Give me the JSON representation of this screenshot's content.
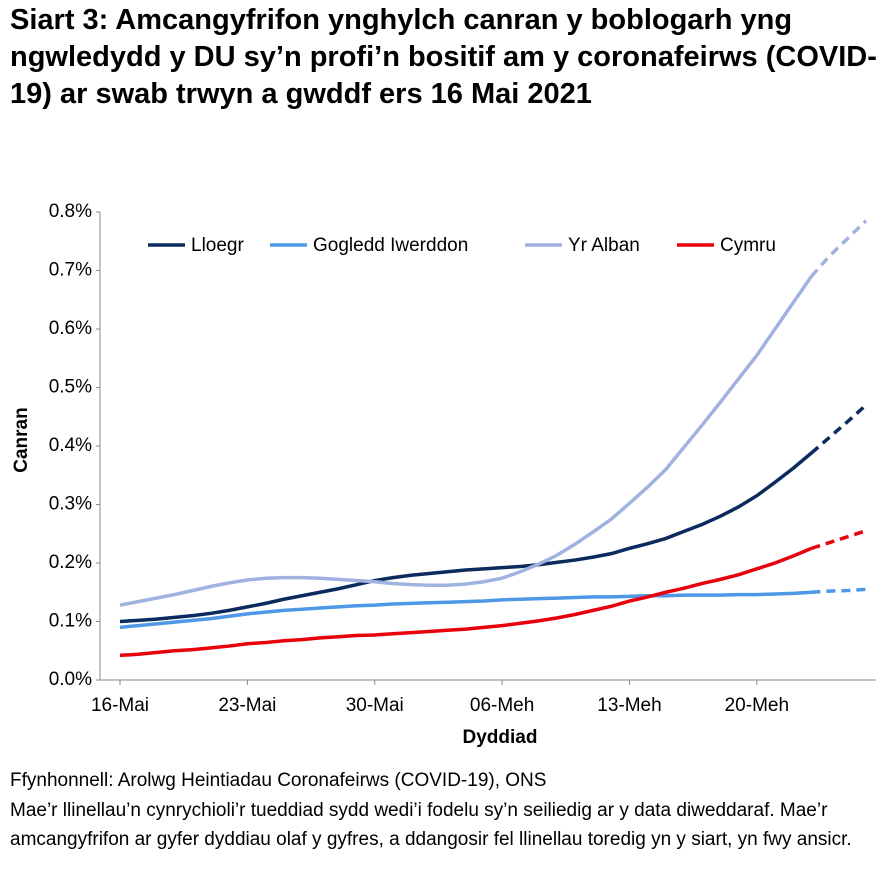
{
  "chart_data": {
    "type": "line",
    "title": "Siart 3: Amcangyfrifon ynghylch canran y boblogarh yng ngwledydd y DU sy’n profi’n bositif am y coronafeirws (COVID-19) ar swab trwyn a gwddf ers 16 Mai 2021",
    "y_label": "Canran",
    "x_label": "Dyddiad",
    "source": "Ffynhonnell: Arolwg Heintiadau Coronafeirws (COVID-19), ONS",
    "note": "Mae’r llinellau’n cynrychioli’r tueddiad sydd wedi’i fodelu sy’n seiliedig ar y data diweddaraf. Mae’r amcangyfrifon ar gyfer dyddiau olaf y gyfres, a ddangosir fel llinellau toredig yn y siart, yn fwy ansicr.",
    "categories": [
      "16-Mai",
      null,
      null,
      null,
      null,
      null,
      null,
      "23-Mai",
      null,
      null,
      null,
      null,
      null,
      null,
      "30-Mai",
      null,
      null,
      null,
      null,
      null,
      null,
      "06-Meh",
      null,
      null,
      null,
      null,
      null,
      null,
      "13-Meh",
      null,
      null,
      null,
      null,
      null,
      null,
      "20-Meh",
      null,
      null,
      null,
      null,
      null,
      null
    ],
    "ylim": [
      0,
      0.8
    ],
    "yticks": [
      {
        "value": 0,
        "label": "0.0%"
      },
      {
        "value": 0.1,
        "label": "0.1%"
      },
      {
        "value": 0.2,
        "label": "0.2%"
      },
      {
        "value": 0.3,
        "label": "0.3%"
      },
      {
        "value": 0.4,
        "label": "0.4%"
      },
      {
        "value": 0.5,
        "label": "0.5%"
      },
      {
        "value": 0.6,
        "label": "0.6%"
      },
      {
        "value": 0.7,
        "label": "0.7%"
      },
      {
        "value": 0.8,
        "label": "0.8%"
      }
    ],
    "legend": "top",
    "dash_start": 38,
    "series": [
      {
        "name": "Lloegr",
        "color": "#0b2a5e",
        "values": [
          0.1,
          0.102,
          0.104,
          0.107,
          0.11,
          0.114,
          0.119,
          0.125,
          0.131,
          0.138,
          0.144,
          0.15,
          0.156,
          0.163,
          0.17,
          0.175,
          0.179,
          0.182,
          0.185,
          0.188,
          0.19,
          0.192,
          0.194,
          0.197,
          0.201,
          0.205,
          0.21,
          0.216,
          0.225,
          0.233,
          0.242,
          0.254,
          0.266,
          0.28,
          0.296,
          0.315,
          0.338,
          0.362,
          0.388,
          0.415,
          0.442,
          0.47
        ]
      },
      {
        "name": "Gogledd Iwerddon",
        "color": "#4f98e6",
        "values": [
          0.09,
          0.093,
          0.096,
          0.099,
          0.102,
          0.105,
          0.109,
          0.113,
          0.116,
          0.119,
          0.121,
          0.123,
          0.125,
          0.127,
          0.128,
          0.13,
          0.131,
          0.132,
          0.133,
          0.134,
          0.135,
          0.137,
          0.138,
          0.139,
          0.14,
          0.141,
          0.142,
          0.142,
          0.143,
          0.144,
          0.144,
          0.145,
          0.145,
          0.145,
          0.146,
          0.146,
          0.147,
          0.148,
          0.15,
          0.152,
          0.153,
          0.155
        ]
      },
      {
        "name": "Yr Alban",
        "color": "#a0b3e0",
        "values": [
          0.128,
          0.134,
          0.14,
          0.146,
          0.153,
          0.16,
          0.166,
          0.171,
          0.174,
          0.175,
          0.175,
          0.174,
          0.172,
          0.17,
          0.168,
          0.165,
          0.163,
          0.162,
          0.162,
          0.164,
          0.168,
          0.174,
          0.185,
          0.198,
          0.213,
          0.232,
          0.253,
          0.275,
          0.302,
          0.33,
          0.36,
          0.398,
          0.436,
          0.475,
          0.515,
          0.555,
          0.6,
          0.645,
          0.69,
          0.725,
          0.755,
          0.785
        ]
      },
      {
        "name": "Cymru",
        "color": "#e8000b",
        "values": [
          0.042,
          0.044,
          0.047,
          0.05,
          0.052,
          0.055,
          0.058,
          0.062,
          0.064,
          0.067,
          0.069,
          0.072,
          0.074,
          0.076,
          0.077,
          0.079,
          0.081,
          0.083,
          0.085,
          0.087,
          0.09,
          0.093,
          0.097,
          0.101,
          0.106,
          0.112,
          0.119,
          0.126,
          0.135,
          0.142,
          0.15,
          0.157,
          0.165,
          0.172,
          0.18,
          0.19,
          0.2,
          0.212,
          0.225,
          0.235,
          0.245,
          0.255
        ]
      }
    ]
  }
}
